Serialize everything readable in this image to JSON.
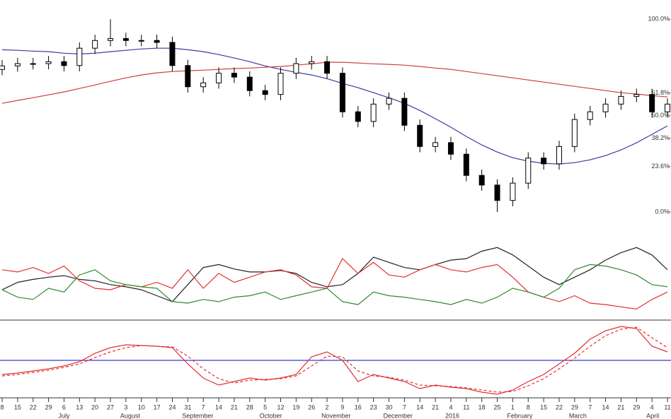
{
  "chart_data": [
    {
      "type": "candlestick",
      "open": [
        74,
        75.8,
        77,
        77,
        78,
        76,
        85,
        89,
        90,
        89,
        89,
        88,
        76,
        65,
        67,
        72,
        70,
        63,
        61,
        72,
        77,
        78,
        72,
        52,
        47,
        56,
        59,
        45,
        34,
        36,
        30,
        19,
        14,
        6,
        15,
        28,
        25,
        34,
        48,
        52,
        56,
        60,
        61,
        52
      ],
      "high": [
        78.8,
        80,
        80,
        81,
        81,
        88,
        92,
        100,
        93,
        92,
        92,
        91,
        79,
        70,
        75,
        75,
        73,
        66,
        75,
        80,
        81,
        81,
        75,
        55,
        59,
        62,
        62,
        48,
        39,
        39,
        33,
        22,
        17,
        18,
        31,
        31,
        37,
        51,
        55,
        59,
        63,
        64,
        64,
        59
      ],
      "low": [
        71,
        72.8,
        74,
        74,
        73,
        73,
        82,
        86,
        86,
        86,
        85,
        73,
        62,
        62,
        64,
        67,
        60,
        58,
        58,
        69,
        74,
        69,
        49,
        44,
        44,
        53,
        42,
        31,
        31,
        27,
        16,
        11,
        0,
        3,
        12,
        22,
        22,
        31,
        45,
        49,
        53,
        57,
        49,
        49
      ],
      "close": [
        75.8,
        77,
        77,
        78,
        76,
        85,
        89,
        90,
        89,
        89,
        88,
        76,
        65,
        67,
        72,
        70,
        63,
        61,
        72,
        77,
        78,
        72,
        52,
        47,
        56,
        59,
        45,
        34,
        36,
        30,
        19,
        14,
        6,
        15,
        28,
        25,
        34,
        48,
        52,
        56,
        60,
        61,
        52,
        56
      ],
      "series": [
        {
          "color": "#3a3a9e",
          "values": [
            84.2,
            83.9,
            83.5,
            83.2,
            82.4,
            82,
            82.4,
            83.2,
            83.9,
            84.6,
            85,
            85,
            84.2,
            83.2,
            81.7,
            79.9,
            78,
            75.8,
            74,
            72.5,
            71.1,
            69.2,
            66.7,
            64.5,
            61.9,
            59.3,
            56.4,
            52.7,
            48.4,
            44,
            39.2,
            34.8,
            31.1,
            28.2,
            26.4,
            25.3,
            24.9,
            25.6,
            27.1,
            29.3,
            32.2,
            35.9,
            40.3,
            44.7
          ]
        },
        {
          "color": "#d23c3c",
          "values": [
            56.4,
            57.9,
            59.3,
            60.8,
            62.3,
            64.1,
            65.9,
            67.8,
            69.6,
            71.1,
            72.2,
            72.9,
            73.3,
            73.6,
            74,
            74.4,
            74.7,
            75.1,
            75.5,
            76.2,
            76.9,
            77.7,
            77.7,
            77.3,
            76.9,
            76.6,
            76.2,
            75.5,
            74.7,
            74,
            72.9,
            71.8,
            70.7,
            69.6,
            68.5,
            67.4,
            66.3,
            65.2,
            64.1,
            63,
            61.9,
            61.2,
            60.4,
            59.7
          ]
        }
      ],
      "ylim": [
        -11.7,
        110
      ],
      "yticks": [
        {
          "value": 100,
          "label": "100.0%"
        },
        {
          "value": 61.8,
          "label": "61.8%"
        },
        {
          "value": 50,
          "label": "50.0%"
        },
        {
          "value": 38.2,
          "label": "38.2%"
        },
        {
          "value": 23.6,
          "label": "23.6%"
        },
        {
          "value": 0,
          "label": "0.0%"
        }
      ]
    },
    {
      "type": "line",
      "series": [
        {
          "color": "#222222",
          "values": [
            38,
            48,
            52,
            55,
            57,
            52,
            50,
            45,
            42,
            38,
            30,
            22,
            45,
            68,
            72,
            66,
            62,
            62,
            64,
            60,
            48,
            42,
            45,
            60,
            82,
            75,
            68,
            65,
            72,
            78,
            80,
            90,
            95,
            85,
            70,
            55,
            45,
            55,
            65,
            78,
            88,
            95,
            85,
            65
          ]
        },
        {
          "color": "#e03030",
          "values": [
            65,
            62,
            68,
            60,
            70,
            50,
            40,
            38,
            45,
            42,
            48,
            40,
            65,
            40,
            60,
            48,
            55,
            62,
            65,
            58,
            42,
            40,
            80,
            60,
            75,
            58,
            55,
            65,
            72,
            65,
            62,
            68,
            72,
            55,
            35,
            28,
            22,
            30,
            20,
            18,
            15,
            12,
            25,
            35
          ]
        },
        {
          "color": "#2e8b2e",
          "values": [
            38,
            28,
            25,
            40,
            35,
            58,
            65,
            50,
            45,
            42,
            40,
            22,
            20,
            25,
            22,
            28,
            30,
            35,
            25,
            30,
            35,
            40,
            22,
            18,
            35,
            30,
            28,
            25,
            22,
            18,
            25,
            20,
            28,
            40,
            35,
            28,
            40,
            65,
            72,
            70,
            65,
            58,
            45,
            42
          ]
        }
      ],
      "ylim": [
        0,
        100
      ]
    },
    {
      "type": "line",
      "series": [
        {
          "color": "#e03030",
          "values": [
            -20,
            -18,
            -15,
            -12,
            -8,
            -2,
            10,
            18,
            22,
            21,
            20,
            18,
            -5,
            -25,
            -35,
            -30,
            -25,
            -28,
            -25,
            -20,
            5,
            12,
            0,
            -30,
            -20,
            -25,
            -30,
            -40,
            -35,
            -38,
            -40,
            -45,
            -48,
            -42,
            -30,
            -20,
            -5,
            10,
            30,
            42,
            48,
            45,
            20,
            12
          ]
        },
        {
          "color": "#e03030",
          "dashed": true,
          "values": [
            -22,
            -20,
            -17,
            -14,
            -10,
            -5,
            4,
            12,
            18,
            21,
            20,
            19,
            6,
            -12,
            -26,
            -32,
            -28,
            -27,
            -26,
            -22,
            -8,
            6,
            5,
            -15,
            -22,
            -24,
            -28,
            -35,
            -36,
            -37,
            -39,
            -42,
            -45,
            -44,
            -36,
            -26,
            -12,
            3,
            20,
            35,
            44,
            47,
            32,
            18
          ]
        }
      ],
      "hline": {
        "value": 0,
        "color": "#3a3ad0"
      },
      "ylim": [
        -50,
        50
      ],
      "categories": [
        "8",
        "15",
        "22",
        "29",
        "6",
        "13",
        "20",
        "27",
        "3",
        "10",
        "17",
        "24",
        "31",
        "7",
        "14",
        "21",
        "28",
        "5",
        "12",
        "19",
        "26",
        "2",
        "9",
        "16",
        "23",
        "30",
        "7",
        "14",
        "21",
        "4",
        "11",
        "18",
        "25",
        "1",
        "8",
        "15",
        "22",
        "29",
        "7",
        "14",
        "21",
        "29",
        "4",
        "11"
      ],
      "months": [
        {
          "label": "July",
          "index": 4
        },
        {
          "label": "August",
          "index": 8
        },
        {
          "label": "September",
          "index": 12
        },
        {
          "label": "October",
          "index": 17
        },
        {
          "label": "November",
          "index": 21
        },
        {
          "label": "December",
          "index": 25
        },
        {
          "label": "2016",
          "index": 29
        },
        {
          "label": "February",
          "index": 33
        },
        {
          "label": "March",
          "index": 37
        },
        {
          "label": "April",
          "index": 42
        }
      ]
    }
  ]
}
